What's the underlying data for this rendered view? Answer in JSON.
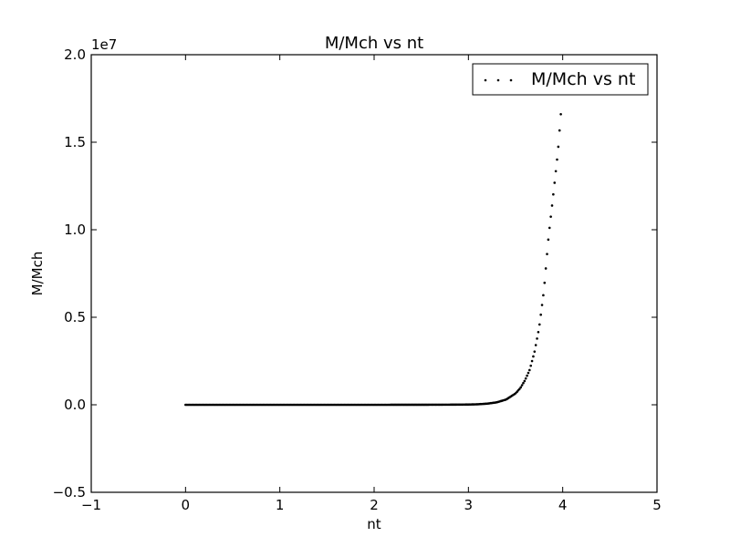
{
  "chart_data": {
    "type": "scatter",
    "title": "M/Mch vs nt",
    "xlabel": "nt",
    "ylabel": "M/Mch",
    "xlim": [
      -1,
      5
    ],
    "ylim": [
      -0.5,
      2.0
    ],
    "y_multiplier": "1e7",
    "x_ticks": [
      -1,
      0,
      1,
      2,
      3,
      4,
      5
    ],
    "x_tick_labels": [
      "−1",
      "0",
      "1",
      "2",
      "3",
      "4",
      "5"
    ],
    "y_ticks": [
      -0.5,
      0.0,
      0.5,
      1.0,
      1.5,
      2.0
    ],
    "y_tick_labels": [
      "−0.5",
      "0.0",
      "0.5",
      "1.0",
      "1.5",
      "2.0"
    ],
    "grid": false,
    "legend_position": "top-right",
    "series": [
      {
        "name": "M/Mch vs nt",
        "marker": "dot",
        "color": "#000000",
        "x": [
          0.0,
          0.5,
          1.0,
          1.5,
          2.0,
          2.5,
          2.8,
          3.0,
          3.1,
          3.2,
          3.3,
          3.4,
          3.5,
          3.55,
          3.6,
          3.65,
          3.7,
          3.75,
          3.8,
          3.85,
          3.9,
          3.95,
          3.98
        ],
        "y": [
          0.0,
          0.0,
          0.0,
          0.0,
          0.0,
          0.0002,
          0.0007,
          0.0015,
          0.003,
          0.0065,
          0.014,
          0.03,
          0.065,
          0.095,
          0.14,
          0.2,
          0.3,
          0.44,
          0.65,
          0.96,
          1.2,
          1.45,
          1.66
        ]
      }
    ]
  }
}
